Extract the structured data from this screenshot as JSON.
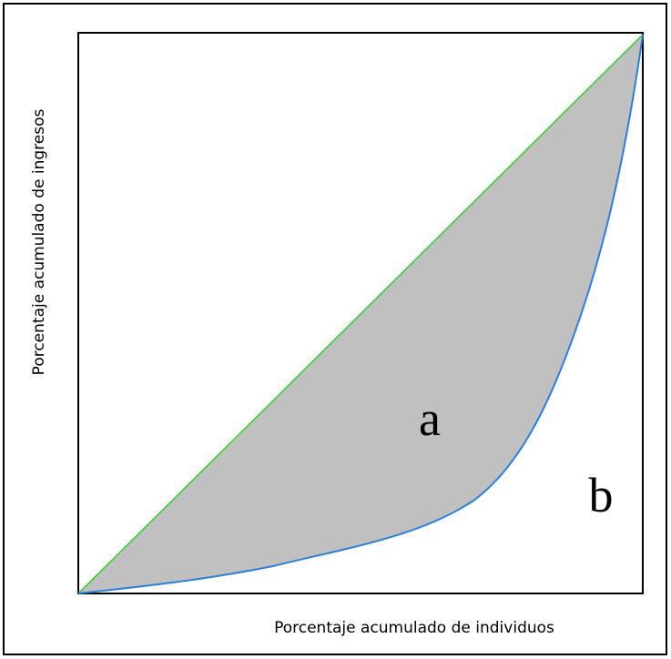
{
  "diagram": {
    "x_axis_label": "Porcentaje acumulado de individuos",
    "y_axis_label": "Porcentaje acumulado de ingresos",
    "region_a_label": "a",
    "region_b_label": "b"
  }
}
